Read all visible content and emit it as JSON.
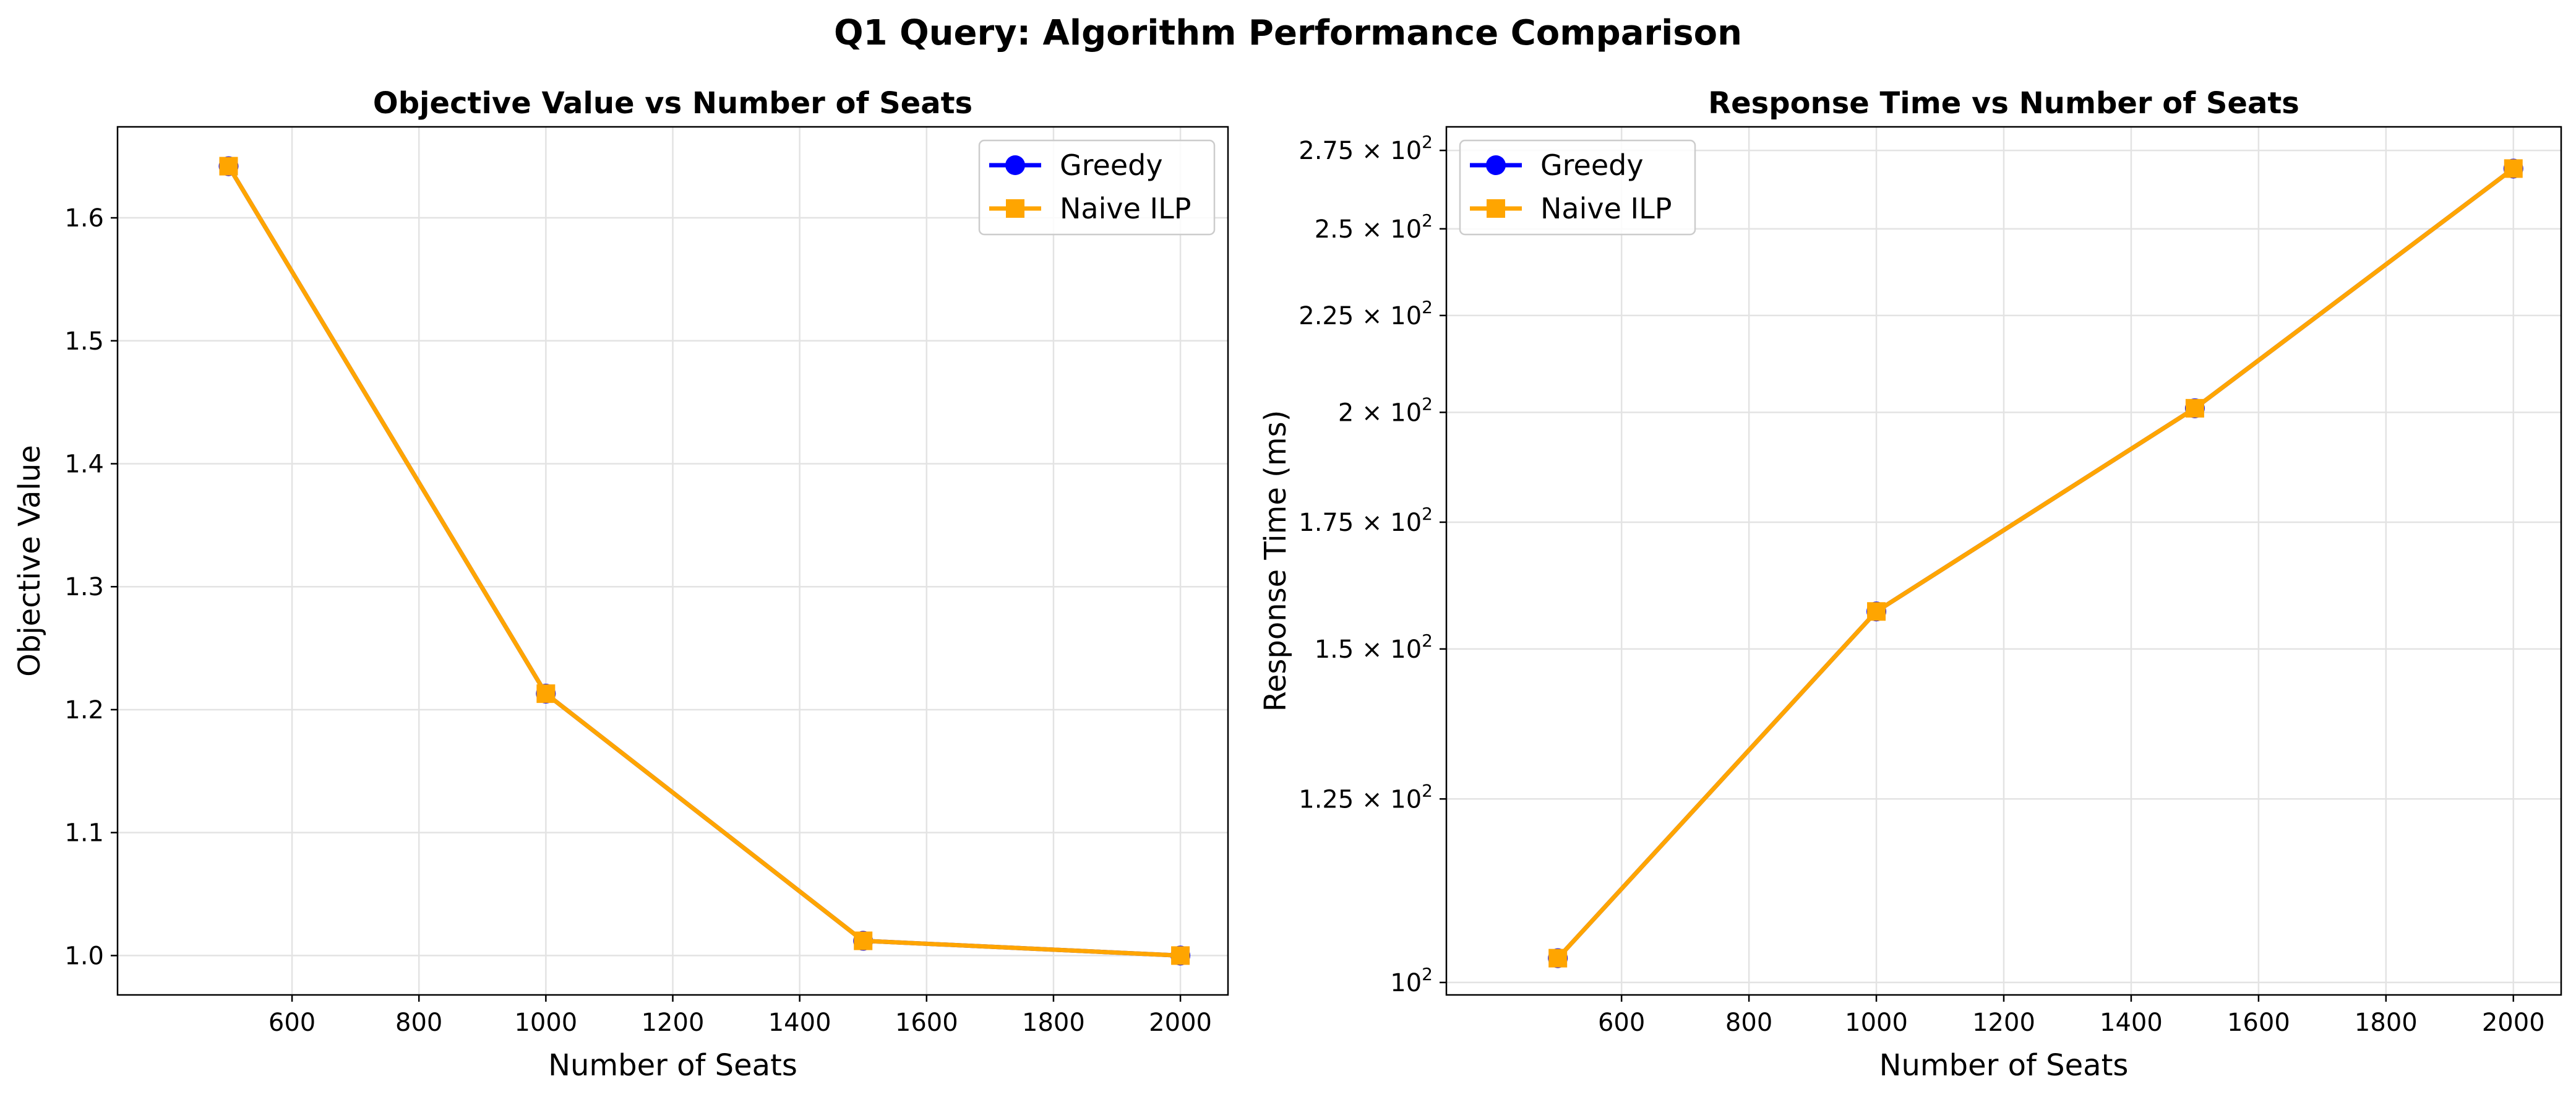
{
  "figure": {
    "suptitle": "Q1 Query: Algorithm Performance Comparison"
  },
  "chart_data": [
    {
      "type": "line",
      "title": "Objective Value vs Number of Seats",
      "xlabel": "Number of Seats",
      "ylabel": "Objective Value",
      "x": [
        500,
        1000,
        1500,
        2000
      ],
      "xlim": [
        325,
        2075
      ],
      "ylim": [
        0.968,
        1.674
      ],
      "yscale": "linear",
      "xticks": [
        600,
        800,
        1000,
        1200,
        1400,
        1600,
        1800,
        2000
      ],
      "yticks": [
        1.0,
        1.1,
        1.2,
        1.3,
        1.4,
        1.5,
        1.6
      ],
      "ytick_labels": [
        "1.0",
        "1.1",
        "1.2",
        "1.3",
        "1.4",
        "1.5",
        "1.6"
      ],
      "grid": true,
      "legend": "upper-right",
      "series": [
        {
          "name": "Greedy",
          "color": "#0000ff",
          "marker": "circle",
          "values": [
            1.642,
            1.213,
            1.012,
            1.0
          ]
        },
        {
          "name": "Naive ILP",
          "color": "#ffa500",
          "marker": "square",
          "values": [
            1.642,
            1.213,
            1.012,
            1.0
          ]
        }
      ]
    },
    {
      "type": "line",
      "title": "Response Time vs Number of Seats",
      "xlabel": "Number of Seats",
      "ylabel": "Response Time (ms)",
      "x": [
        500,
        1000,
        1500,
        2000
      ],
      "xlim": [
        325,
        2075
      ],
      "ylim": [
        98.5,
        283
      ],
      "yscale": "log",
      "xticks": [
        600,
        800,
        1000,
        1200,
        1400,
        1600,
        1800,
        2000
      ],
      "yticks": [
        100,
        125,
        150,
        175,
        200,
        225,
        250,
        275
      ],
      "ytick_labels": [
        {
          "mantissa": "",
          "base": "10",
          "exp": "2"
        },
        {
          "mantissa": "1.25 × ",
          "base": "10",
          "exp": "2"
        },
        {
          "mantissa": "1.5 × ",
          "base": "10",
          "exp": "2"
        },
        {
          "mantissa": "1.75 × ",
          "base": "10",
          "exp": "2"
        },
        {
          "mantissa": "2 × ",
          "base": "10",
          "exp": "2"
        },
        {
          "mantissa": "2.25 × ",
          "base": "10",
          "exp": "2"
        },
        {
          "mantissa": "2.5 × ",
          "base": "10",
          "exp": "2"
        },
        {
          "mantissa": "2.75 × ",
          "base": "10",
          "exp": "2"
        }
      ],
      "grid": true,
      "legend": "upper-left",
      "series": [
        {
          "name": "Greedy",
          "color": "#0000ff",
          "marker": "circle",
          "values": [
            103,
            157,
            201,
            269
          ]
        },
        {
          "name": "Naive ILP",
          "color": "#ffa500",
          "marker": "square",
          "values": [
            103,
            157,
            201,
            269
          ]
        }
      ]
    }
  ]
}
